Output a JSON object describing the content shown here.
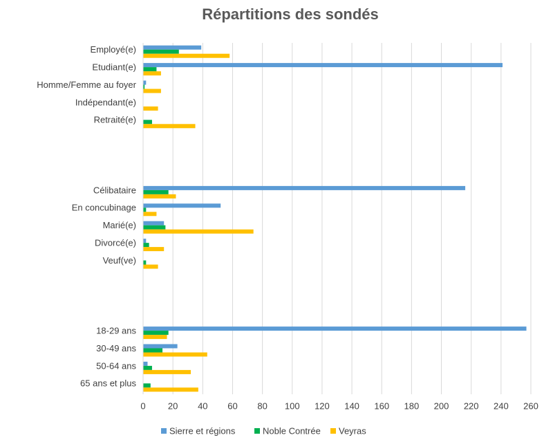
{
  "chart_data": {
    "type": "barh",
    "title": "Répartitions  des sondés",
    "categories": [
      "Employé(e)",
      "Etudiant(e)",
      "Homme/Femme au foyer",
      "Indépendant(e)",
      "Retraité(e)",
      null,
      null,
      null,
      "Célibataire",
      "En concubinage",
      "Marié(e)",
      "Divorcé(e)",
      "Veuf(ve)",
      null,
      null,
      null,
      "18-29 ans",
      "30-49 ans",
      "50-64 ans",
      "65 ans et plus"
    ],
    "series": [
      {
        "name": "Sierre et régions",
        "color": "#5b9bd5",
        "values": [
          39,
          241,
          2,
          0,
          0,
          null,
          null,
          null,
          216,
          52,
          14,
          2,
          0,
          null,
          null,
          null,
          257,
          23,
          3,
          0
        ]
      },
      {
        "name": "Noble Contrée",
        "color": "#00b050",
        "values": [
          24,
          9,
          1,
          0,
          6,
          null,
          null,
          null,
          17,
          2,
          15,
          4,
          2,
          null,
          null,
          null,
          17,
          13,
          6,
          5
        ]
      },
      {
        "name": "Veyras",
        "color": "#ffc000",
        "values": [
          58,
          12,
          12,
          10,
          35,
          null,
          null,
          null,
          22,
          9,
          74,
          14,
          10,
          null,
          null,
          null,
          16,
          43,
          32,
          37
        ]
      }
    ],
    "xlim": [
      0,
      260
    ],
    "xticks": [
      0,
      20,
      40,
      60,
      80,
      100,
      120,
      140,
      160,
      180,
      200,
      220,
      240,
      260
    ],
    "grid": true,
    "legend": "bottom"
  }
}
